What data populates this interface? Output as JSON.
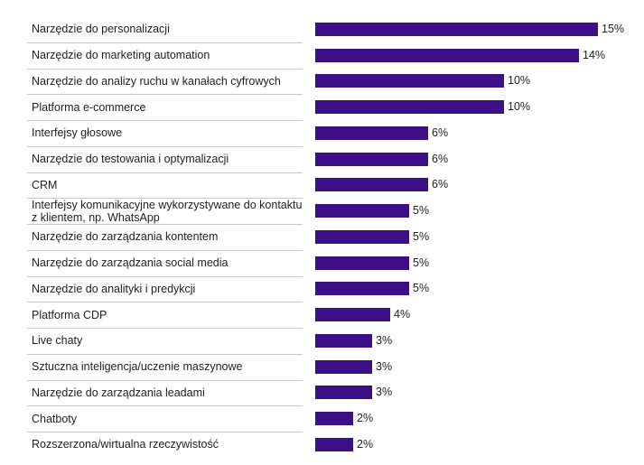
{
  "colors": {
    "bar": "#3c0f87",
    "separator": "#c8c8c8",
    "text": "#222222"
  },
  "chart_data": {
    "type": "bar",
    "orientation": "horizontal",
    "title": "",
    "xlabel": "",
    "ylabel": "",
    "xlim": [
      0,
      15
    ],
    "grid": false,
    "categories": [
      "Narzędzie do personalizacji",
      "Narzędzie do marketing automation",
      "Narzędzie do analizy ruchu w kanałach cyfrowych",
      "Platforma e-commerce",
      "Interfejsy głosowe",
      "Narzędzie do testowania i optymalizacji",
      "CRM",
      "Interfejsy komunikacyjne wykorzystywane do kontaktu z klientem, np. WhatsApp",
      "Narzędzie do zarządzania kontentem",
      "Narzędzie do zarządzania social media",
      "Narzędzie do analityki i predykcji",
      "Platforma CDP",
      "Live chaty",
      "Sztuczna inteligencja/uczenie maszynowe",
      "Narzędzie do zarządzania leadami",
      "Chatboty",
      "Rozszerzona/wirtualna rzeczywistość"
    ],
    "values": [
      15,
      14,
      10,
      10,
      6,
      6,
      6,
      5,
      5,
      5,
      5,
      4,
      3,
      3,
      3,
      2,
      2
    ],
    "value_labels": [
      "15%",
      "14%",
      "10%",
      "10%",
      "6%",
      "6%",
      "6%",
      "5%",
      "5%",
      "5%",
      "5%",
      "4%",
      "3%",
      "3%",
      "3%",
      "2%",
      "2%"
    ]
  }
}
